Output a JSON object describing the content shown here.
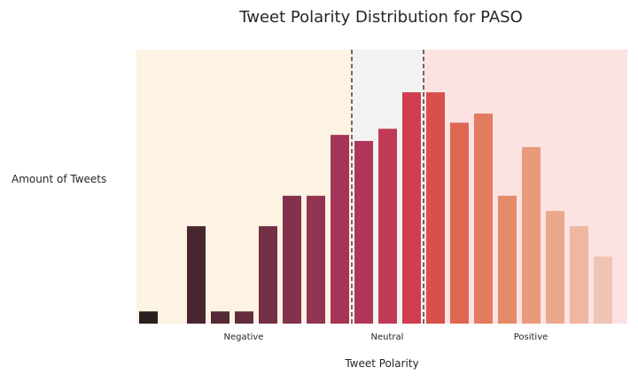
{
  "chart_data": {
    "type": "bar",
    "title": "Tweet Polarity Distribution for PASO",
    "xlabel": "Tweet Polarity",
    "ylabel": "Amount of Tweets",
    "ylim": [
      0,
      4.5
    ],
    "values": [
      0.2,
      0,
      1.6,
      0.2,
      0.2,
      1.6,
      2.1,
      2.1,
      3.1,
      3.0,
      3.2,
      3.8,
      3.8,
      3.3,
      3.45,
      2.1,
      2.9,
      1.85,
      1.6,
      1.1
    ],
    "colors": [
      "#2b1e1e",
      "#3a2228",
      "#48262f",
      "#562936",
      "#632c3d",
      "#722f45",
      "#82324c",
      "#933452",
      "#a53557",
      "#b03659",
      "#c13a55",
      "#cf3f4f",
      "#d9504a",
      "#df6650",
      "#e27b5f",
      "#e58a69",
      "#e89a7b",
      "#eaa98c",
      "#edb7a0",
      "#f0c4b5"
    ],
    "regions": [
      {
        "label": "Negative",
        "color": "#fdf3e3"
      },
      {
        "label": "Neutral",
        "color": "#f2f2f2"
      },
      {
        "label": "Positive",
        "color": "#fde2e2"
      }
    ],
    "boundaries": [
      8.5,
      11.5
    ],
    "grid": false
  }
}
